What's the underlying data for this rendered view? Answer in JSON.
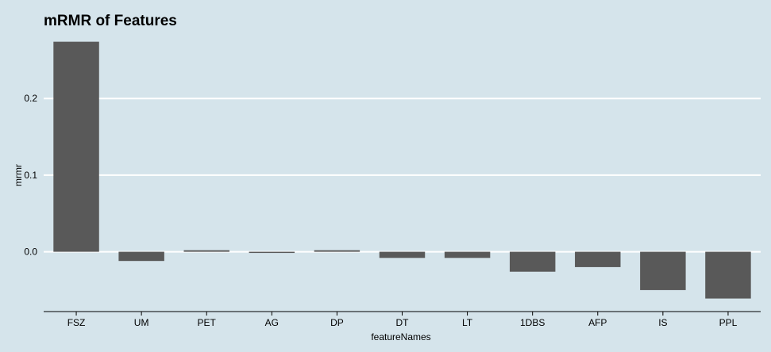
{
  "chart_data": {
    "type": "bar",
    "title": "mRMR of Features",
    "xlabel": "featureNames",
    "ylabel": "mrmr",
    "categories": [
      "FSZ",
      "UM",
      "PET",
      "AG",
      "DP",
      "DT",
      "LT",
      "1DBS",
      "AFP",
      "IS",
      "PPL"
    ],
    "values": [
      0.274,
      -0.012,
      0.002,
      -0.001,
      0.002,
      -0.008,
      -0.008,
      -0.026,
      -0.02,
      -0.05,
      -0.061
    ],
    "ylim": [
      -0.078,
      0.285
    ],
    "yticks": [
      0.0,
      0.1,
      0.2
    ],
    "ytick_labels": [
      "0.0",
      "0.1",
      "0.2"
    ],
    "grid": "horizontal",
    "legend": "none",
    "colors": {
      "background": "#d5e4eb",
      "bar": "#595959",
      "grid": "#ffffff",
      "axis": "#000000"
    }
  }
}
